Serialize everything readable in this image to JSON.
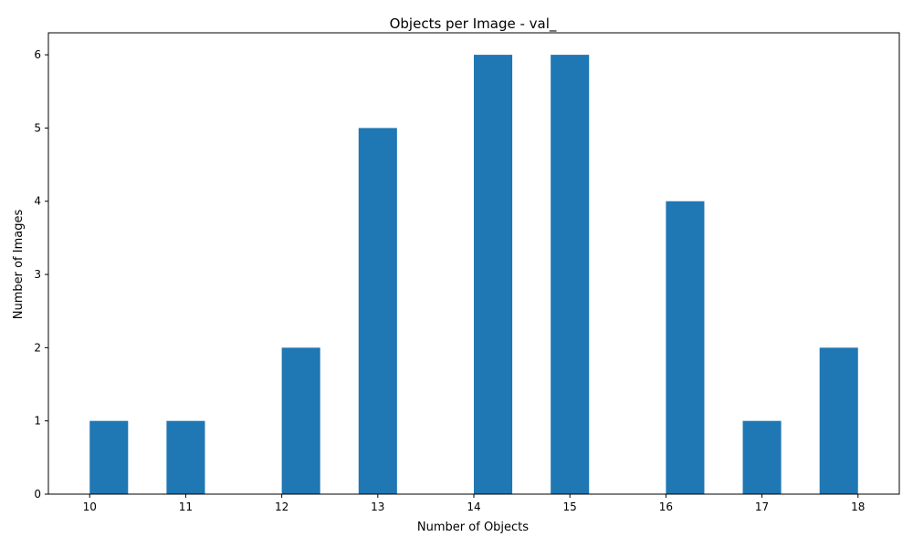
{
  "chart_data": {
    "type": "bar",
    "title": "Objects per Image - val_",
    "xlabel": "Number of Objects",
    "ylabel": "Number of Images",
    "x_ticks": [
      10,
      11,
      12,
      13,
      14,
      15,
      16,
      17,
      18
    ],
    "y_ticks": [
      0,
      1,
      2,
      3,
      4,
      5,
      6
    ],
    "xlim": [
      9.57,
      18.43
    ],
    "ylim": [
      0,
      6.3
    ],
    "bins": [
      {
        "from": 10.0,
        "to": 10.4,
        "value": 1
      },
      {
        "from": 10.8,
        "to": 11.2,
        "value": 1
      },
      {
        "from": 12.0,
        "to": 12.4,
        "value": 2
      },
      {
        "from": 12.8,
        "to": 13.2,
        "value": 5
      },
      {
        "from": 14.0,
        "to": 14.4,
        "value": 6
      },
      {
        "from": 14.8,
        "to": 15.2,
        "value": 6
      },
      {
        "from": 16.0,
        "to": 16.4,
        "value": 4
      },
      {
        "from": 16.8,
        "to": 17.2,
        "value": 1
      },
      {
        "from": 17.6,
        "to": 18.0,
        "value": 2
      }
    ],
    "bar_color": "#1f77b4",
    "grid": false,
    "legend": "none"
  }
}
